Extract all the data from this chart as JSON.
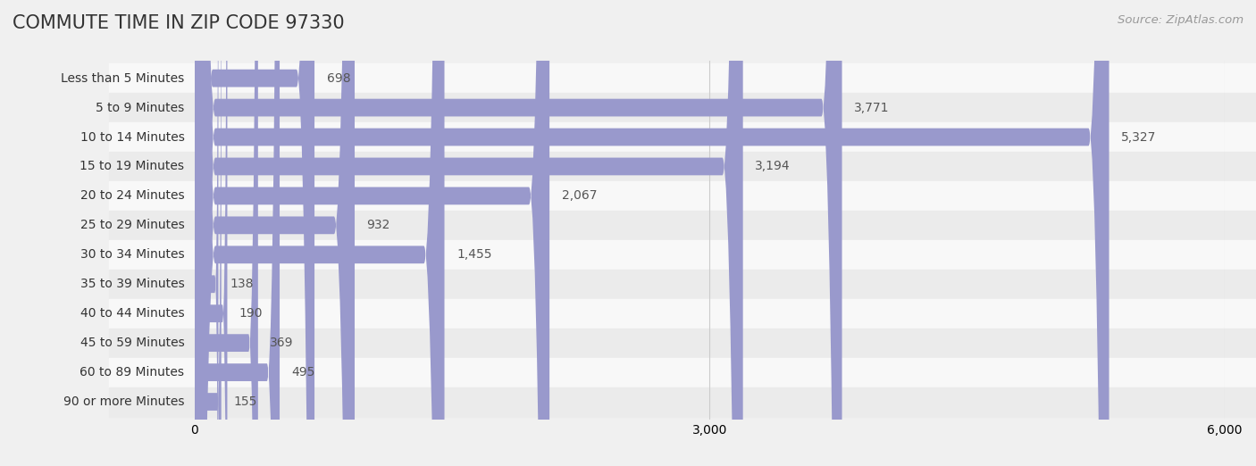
{
  "title": "COMMUTE TIME IN ZIP CODE 97330",
  "source": "Source: ZipAtlas.com",
  "categories": [
    "Less than 5 Minutes",
    "5 to 9 Minutes",
    "10 to 14 Minutes",
    "15 to 19 Minutes",
    "20 to 24 Minutes",
    "25 to 29 Minutes",
    "30 to 34 Minutes",
    "35 to 39 Minutes",
    "40 to 44 Minutes",
    "45 to 59 Minutes",
    "60 to 89 Minutes",
    "90 or more Minutes"
  ],
  "values": [
    698,
    3771,
    5327,
    3194,
    2067,
    932,
    1455,
    138,
    190,
    369,
    495,
    155
  ],
  "bar_color": "#9999cc",
  "background_color": "#f0f0f0",
  "row_bg_light": "#f8f8f8",
  "row_bg_dark": "#ebebeb",
  "title_color": "#333333",
  "label_color": "#333333",
  "value_color": "#555555",
  "source_color": "#999999",
  "grid_color": "#cccccc",
  "xlim": [
    0,
    6000
  ],
  "xticks": [
    0,
    3000,
    6000
  ],
  "title_fontsize": 15,
  "label_fontsize": 10,
  "value_fontsize": 10,
  "source_fontsize": 9.5
}
